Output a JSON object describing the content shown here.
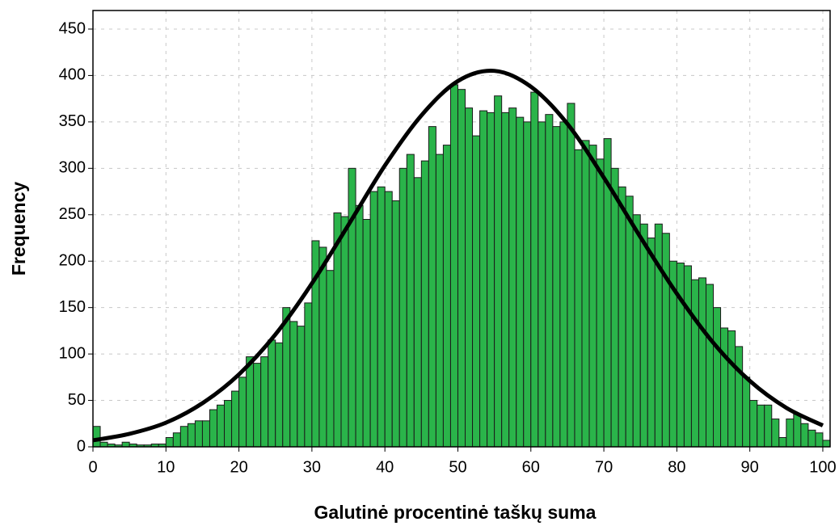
{
  "chart_data": {
    "type": "histogram",
    "x_label": "Galutinė procentinė taškų suma",
    "y_label": "Frequency",
    "bins": [
      0,
      1,
      2,
      3,
      4,
      5,
      6,
      7,
      8,
      9,
      10,
      11,
      12,
      13,
      14,
      15,
      16,
      17,
      18,
      19,
      20,
      21,
      22,
      23,
      24,
      25,
      26,
      27,
      28,
      29,
      30,
      31,
      32,
      33,
      34,
      35,
      36,
      37,
      38,
      39,
      40,
      41,
      42,
      43,
      44,
      45,
      46,
      47,
      48,
      49,
      50,
      51,
      52,
      53,
      54,
      55,
      56,
      57,
      58,
      59,
      60,
      61,
      62,
      63,
      64,
      65,
      66,
      67,
      68,
      69,
      70,
      71,
      72,
      73,
      74,
      75,
      76,
      77,
      78,
      79,
      80,
      81,
      82,
      83,
      84,
      85,
      86,
      87,
      88,
      89,
      90,
      91,
      92,
      93,
      94,
      95,
      96,
      97,
      98,
      99,
      100,
      101
    ],
    "counts": [
      22,
      5,
      3,
      2,
      5,
      3,
      2,
      2,
      3,
      3,
      10,
      15,
      22,
      25,
      28,
      28,
      40,
      45,
      50,
      60,
      75,
      97,
      90,
      97,
      115,
      112,
      150,
      135,
      130,
      155,
      222,
      215,
      190,
      252,
      248,
      300,
      260,
      245,
      275,
      280,
      275,
      265,
      300,
      315,
      290,
      308,
      345,
      315,
      325,
      390,
      385,
      365,
      335,
      362,
      360,
      378,
      360,
      365,
      355,
      350,
      382,
      350,
      358,
      345,
      350,
      370,
      320,
      330,
      325,
      310,
      332,
      300,
      280,
      270,
      250,
      240,
      225,
      240,
      230,
      200,
      198,
      195,
      180,
      182,
      175,
      150,
      128,
      125,
      108,
      75,
      50,
      45,
      45,
      30,
      10,
      30,
      35,
      25,
      18,
      15,
      7
    ],
    "color": "#2ab44a",
    "curve": {
      "color": "#000000",
      "x": [
        0,
        5,
        10,
        15,
        20,
        25,
        30,
        35,
        40,
        45,
        50,
        55,
        60,
        65,
        70,
        75,
        80,
        85,
        90,
        95,
        100
      ],
      "y": [
        7,
        14,
        26,
        47,
        78,
        121,
        176,
        239,
        303,
        357,
        394,
        405,
        388,
        348,
        290,
        226,
        165,
        112,
        71,
        42,
        23
      ]
    },
    "xlim": [
      0,
      101
    ],
    "ylim": [
      0,
      470
    ],
    "xticks": [
      0,
      10,
      20,
      30,
      40,
      50,
      60,
      70,
      80,
      90,
      100
    ],
    "yticks": [
      0,
      50,
      100,
      150,
      200,
      250,
      300,
      350,
      400,
      450
    ],
    "grid": true
  }
}
